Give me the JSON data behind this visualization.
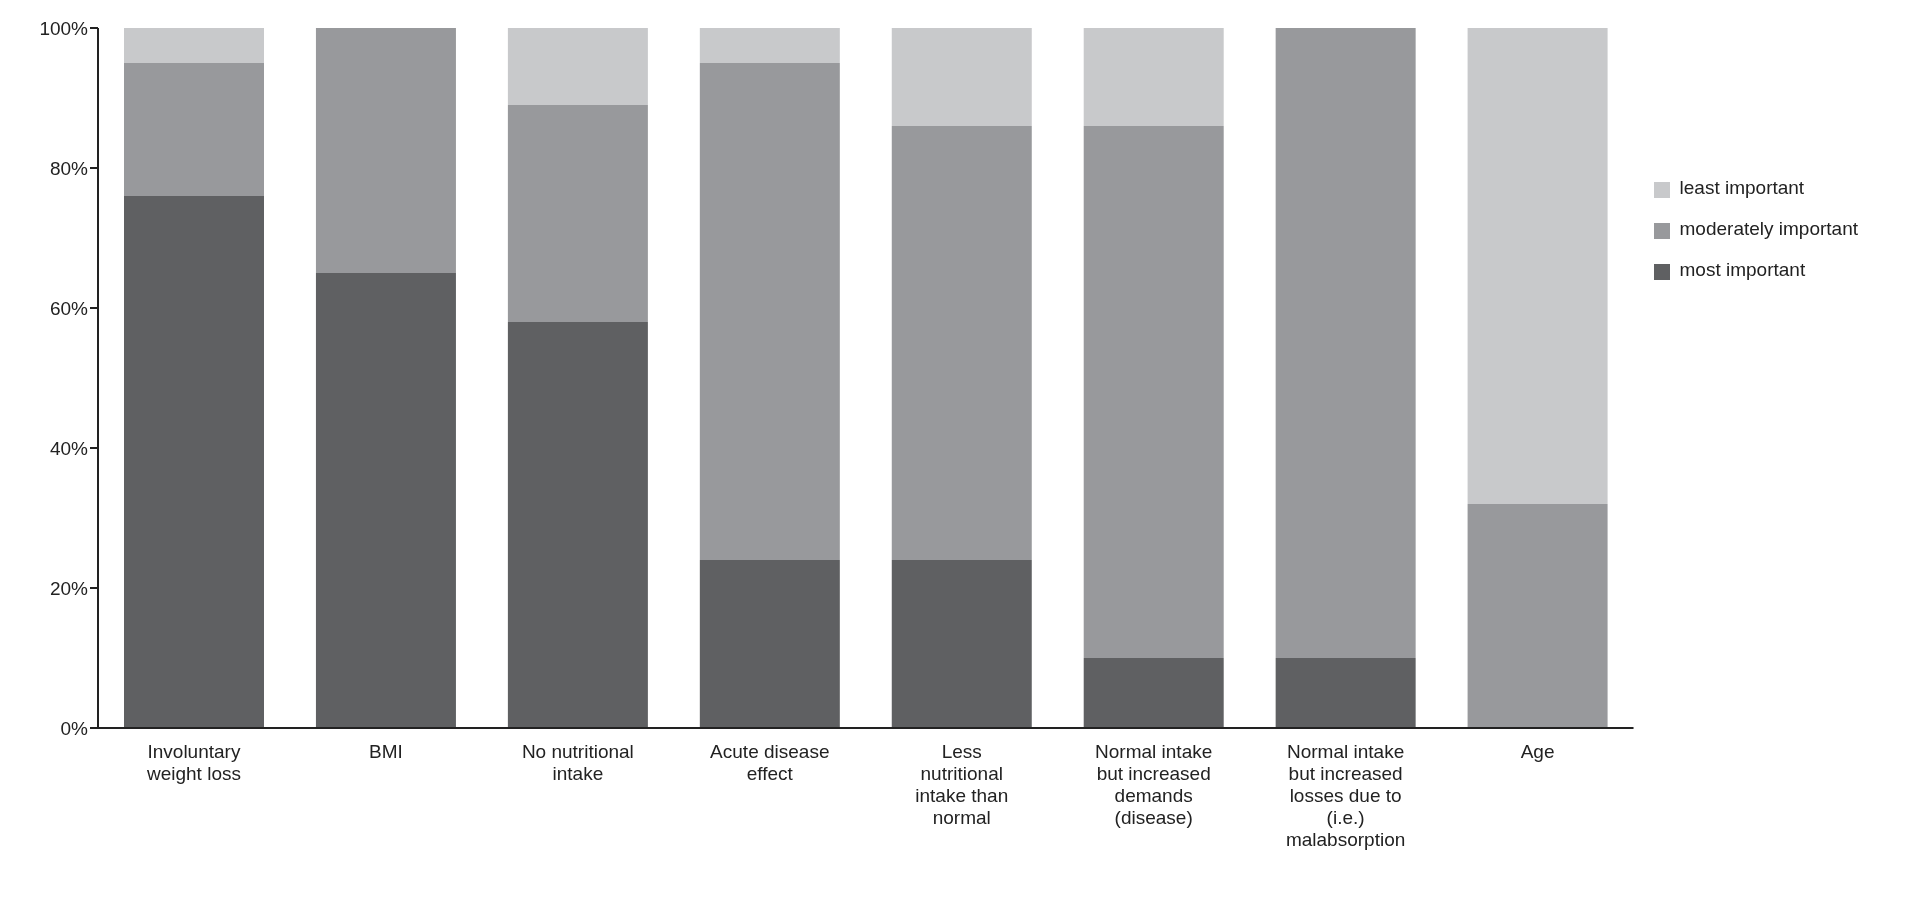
{
  "chart_data": {
    "type": "bar",
    "stacked": true,
    "categories": [
      "Involuntary weight loss",
      "BMI",
      "No nutritional intake",
      "Acute disease effect",
      "Less nutritional intake than normal",
      "Normal intake but increased demands (disease)",
      "Normal intake but increased losses due to (i.e.) malabsorption",
      "Age"
    ],
    "series": [
      {
        "name": "most important",
        "color": "#5f6062",
        "values": [
          76,
          65,
          58,
          24,
          24,
          10,
          10,
          0
        ]
      },
      {
        "name": "moderately important",
        "color": "#98999c",
        "values": [
          19,
          35,
          31,
          71,
          62,
          76,
          90,
          32
        ]
      },
      {
        "name": "least important",
        "color": "#c8c9cb",
        "values": [
          5,
          0,
          11,
          5,
          14,
          14,
          0,
          68
        ]
      }
    ],
    "ylim": [
      0,
      100
    ],
    "yticks": [
      {
        "value": 0,
        "label": "0%"
      },
      {
        "value": 20,
        "label": "20%"
      },
      {
        "value": 40,
        "label": "40%"
      },
      {
        "value": 60,
        "label": "60%"
      },
      {
        "value": 80,
        "label": "80%"
      },
      {
        "value": 100,
        "label": "100%"
      }
    ],
    "grid": false,
    "legend": "right"
  }
}
